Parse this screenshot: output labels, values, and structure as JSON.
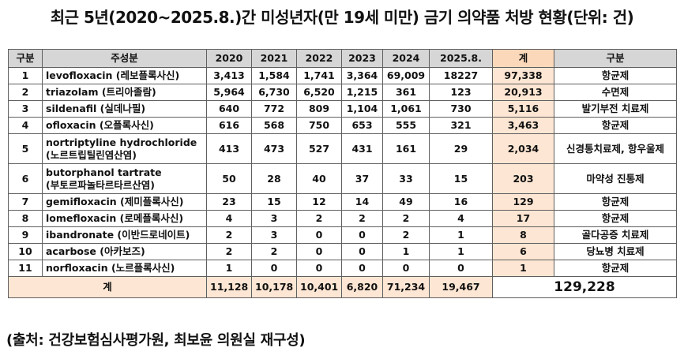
{
  "title": "최근 5년(2020~2025.8.)간 미성년자(만 19세 미만) 금기 의약품 처방 현황(단위: 건)",
  "headers": [
    "구분",
    "주성분",
    "2020",
    "2021",
    "2022",
    "2023",
    "2024",
    "2025.8.",
    "계",
    "구분"
  ],
  "rows": [
    {
      "no": "1",
      "name": "levofloxacin (레보플록사신)",
      "v2020": "3,413",
      "v2021": "1,584",
      "v2022": "1,741",
      "v2023": "3,364",
      "v2024": "69,009",
      "v2025": "18227",
      "total": "97,338",
      "category": "항균제"
    },
    {
      "no": "2",
      "name": "triazolam (트리아졸람)",
      "v2020": "5,964",
      "v2021": "6,730",
      "v2022": "6,520",
      "v2023": "1,215",
      "v2024": "361",
      "v2025": "123",
      "total": "20,913",
      "category": "수면제"
    },
    {
      "no": "3",
      "name": "sildenafil (실데나필)",
      "v2020": "640",
      "v2021": "772",
      "v2022": "809",
      "v2023": "1,104",
      "v2024": "1,061",
      "v2025": "730",
      "total": "5,116",
      "category": "발기부전 치료제"
    },
    {
      "no": "4",
      "name": "ofloxacin (오플록사신)",
      "v2020": "616",
      "v2021": "568",
      "v2022": "750",
      "v2023": "653",
      "v2024": "555",
      "v2025": "321",
      "total": "3,463",
      "category": "항균제"
    },
    {
      "no": "5",
      "name_line1": "nortriptyline hydrochloride",
      "name_line2": "(노르트립틸린염산염)",
      "v2020": "413",
      "v2021": "473",
      "v2022": "527",
      "v2023": "431",
      "v2024": "161",
      "v2025": "29",
      "total": "2,034",
      "category": "신경통치료제, 항우울제"
    },
    {
      "no": "6",
      "name_line1": "butorphanol tartrate",
      "name_line2": "(부토르파놀타르타르산염)",
      "v2020": "50",
      "v2021": "28",
      "v2022": "40",
      "v2023": "37",
      "v2024": "33",
      "v2025": "15",
      "total": "203",
      "category": "마약성 진통제"
    },
    {
      "no": "7",
      "name": "gemifloxacin (제미플록사신)",
      "v2020": "23",
      "v2021": "15",
      "v2022": "12",
      "v2023": "14",
      "v2024": "49",
      "v2025": "16",
      "total": "129",
      "category": "항균제"
    },
    {
      "no": "8",
      "name": "lomefloxacin (로메플록사신)",
      "v2020": "4",
      "v2021": "3",
      "v2022": "2",
      "v2023": "2",
      "v2024": "2",
      "v2025": "4",
      "total": "17",
      "category": "항균제"
    },
    {
      "no": "9",
      "name": "ibandronate (이반드로네이트)",
      "v2020": "2",
      "v2021": "3",
      "v2022": "0",
      "v2023": "0",
      "v2024": "2",
      "v2025": "1",
      "total": "8",
      "category": "골다공증 치료제"
    },
    {
      "no": "10",
      "name": "acarbose (아카보즈)",
      "v2020": "2",
      "v2021": "2",
      "v2022": "0",
      "v2023": "0",
      "v2024": "1",
      "v2025": "1",
      "total": "6",
      "category": "당뇨병 치료제"
    },
    {
      "no": "11",
      "name": "norfloxacin (노르플록사신)",
      "v2020": "1",
      "v2021": "0",
      "v2022": "0",
      "v2023": "0",
      "v2024": "0",
      "v2025": "0",
      "total": "1",
      "category": "항균제"
    }
  ],
  "footer": {
    "label": "계",
    "v2020": "11,128",
    "v2021": "10,178",
    "v2022": "10,401",
    "v2023": "6,820",
    "v2024": "71,234",
    "v2025": "19,467",
    "grand_total": "129,228"
  },
  "source": "(출처: 건강보험심사평가원, 최보윤 의원실 재구성)",
  "colors": {
    "header_gray": "#d6d6d6",
    "total_peach": "#fde6d3",
    "header_peach": "#fbd8b9"
  }
}
